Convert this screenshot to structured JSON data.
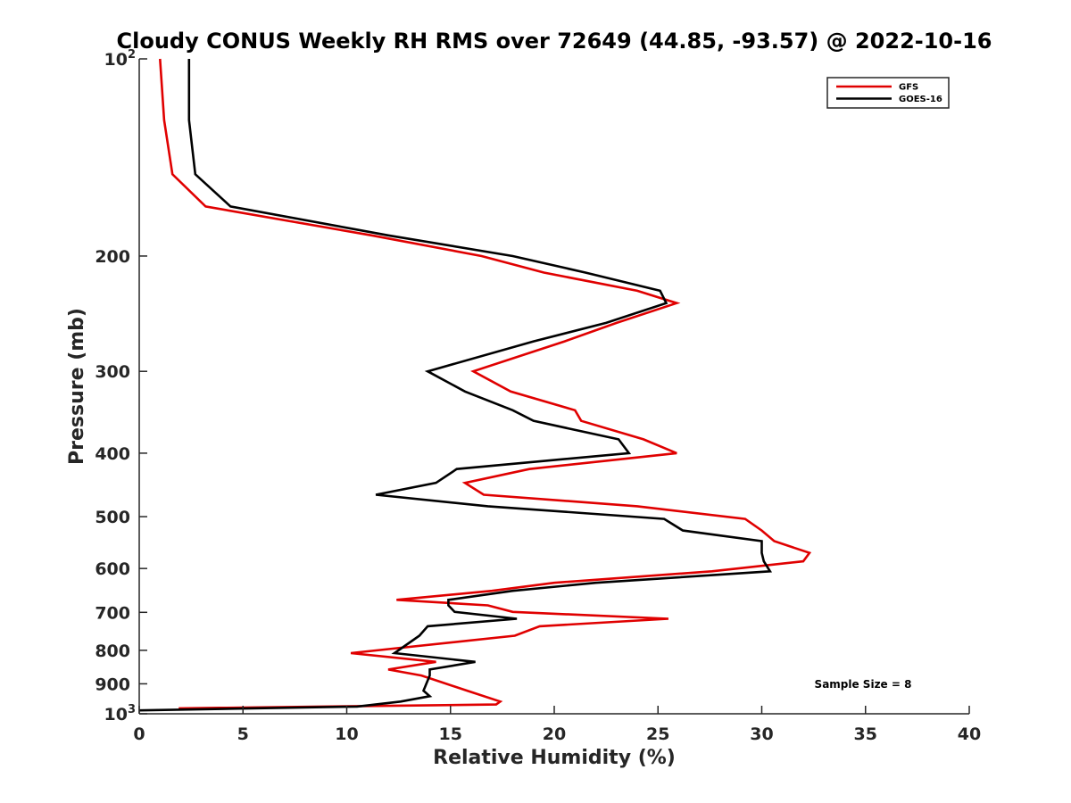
{
  "chart_data": {
    "type": "line",
    "title": "Cloudy CONUS Weekly RH RMS over 72649 (44.85, -93.57) @ 2022-10-16",
    "xlabel": "Relative Humidity (%)",
    "ylabel": "Pressure (mb)",
    "xlim": [
      0,
      40
    ],
    "ylim": [
      100,
      1000
    ],
    "y_scale": "log",
    "y_reversed": true,
    "xticks": [
      0,
      5,
      10,
      15,
      20,
      25,
      30,
      35,
      40
    ],
    "yticks": [
      {
        "value": 100,
        "label": "10",
        "sup": "2"
      },
      {
        "value": 200,
        "label": "200",
        "sup": ""
      },
      {
        "value": 300,
        "label": "300",
        "sup": ""
      },
      {
        "value": 400,
        "label": "400",
        "sup": ""
      },
      {
        "value": 500,
        "label": "500",
        "sup": ""
      },
      {
        "value": 600,
        "label": "600",
        "sup": ""
      },
      {
        "value": 700,
        "label": "700",
        "sup": ""
      },
      {
        "value": 800,
        "label": "800",
        "sup": ""
      },
      {
        "value": 900,
        "label": "900",
        "sup": ""
      },
      {
        "value": 1000,
        "label": "10",
        "sup": "3"
      }
    ],
    "grid": false,
    "legend_position": "top-right",
    "annotation": "Sample Size = 8",
    "series": [
      {
        "name": "GFS",
        "color": "#e00000",
        "points": [
          [
            1.0,
            100
          ],
          [
            1.2,
            124
          ],
          [
            1.6,
            150
          ],
          [
            3.2,
            168
          ],
          [
            11.2,
            186
          ],
          [
            16.5,
            200
          ],
          [
            19.5,
            212
          ],
          [
            24.0,
            226
          ],
          [
            25.9,
            236
          ],
          [
            23.0,
            253
          ],
          [
            20.5,
            270
          ],
          [
            16.1,
            300
          ],
          [
            17.9,
            322
          ],
          [
            21.0,
            344
          ],
          [
            21.3,
            357
          ],
          [
            24.3,
            381
          ],
          [
            25.9,
            400
          ],
          [
            18.8,
            423
          ],
          [
            15.7,
            444
          ],
          [
            16.6,
            463
          ],
          [
            24.0,
            482
          ],
          [
            29.2,
            504
          ],
          [
            30.0,
            525
          ],
          [
            30.6,
            545
          ],
          [
            32.3,
            568
          ],
          [
            32.0,
            585
          ],
          [
            27.6,
            606
          ],
          [
            20.0,
            631
          ],
          [
            17.0,
            649
          ],
          [
            12.4,
            670
          ],
          [
            16.8,
            683
          ],
          [
            18.0,
            699
          ],
          [
            25.5,
            716
          ],
          [
            19.3,
            735
          ],
          [
            18.1,
            760
          ],
          [
            10.2,
            808
          ],
          [
            14.3,
            833
          ],
          [
            12.0,
            856
          ],
          [
            13.6,
            874
          ],
          [
            15.8,
            922
          ],
          [
            17.4,
            958
          ],
          [
            17.2,
            968
          ],
          [
            1.9,
            981
          ]
        ]
      },
      {
        "name": "GOES-16",
        "color": "#000000",
        "points": [
          [
            2.4,
            100
          ],
          [
            2.4,
            124
          ],
          [
            2.7,
            150
          ],
          [
            4.4,
            168
          ],
          [
            12.0,
            186
          ],
          [
            18.0,
            200
          ],
          [
            21.5,
            212
          ],
          [
            25.1,
            226
          ],
          [
            25.4,
            236
          ],
          [
            22.5,
            253
          ],
          [
            19.0,
            270
          ],
          [
            13.9,
            300
          ],
          [
            15.7,
            322
          ],
          [
            18.0,
            344
          ],
          [
            19.0,
            357
          ],
          [
            23.1,
            381
          ],
          [
            23.6,
            400
          ],
          [
            15.3,
            423
          ],
          [
            14.3,
            444
          ],
          [
            11.4,
            463
          ],
          [
            16.8,
            482
          ],
          [
            25.3,
            504
          ],
          [
            26.2,
            525
          ],
          [
            30.0,
            545
          ],
          [
            30.0,
            568
          ],
          [
            30.1,
            585
          ],
          [
            30.4,
            606
          ],
          [
            22.0,
            631
          ],
          [
            18.0,
            649
          ],
          [
            14.9,
            670
          ],
          [
            14.9,
            683
          ],
          [
            15.2,
            699
          ],
          [
            18.2,
            716
          ],
          [
            13.9,
            735
          ],
          [
            13.5,
            760
          ],
          [
            12.3,
            808
          ],
          [
            16.2,
            833
          ],
          [
            14.0,
            856
          ],
          [
            14.0,
            874
          ],
          [
            13.7,
            922
          ],
          [
            14.0,
            940
          ],
          [
            12.6,
            958
          ],
          [
            10.5,
            975
          ],
          [
            0.0,
            988
          ]
        ]
      }
    ]
  }
}
